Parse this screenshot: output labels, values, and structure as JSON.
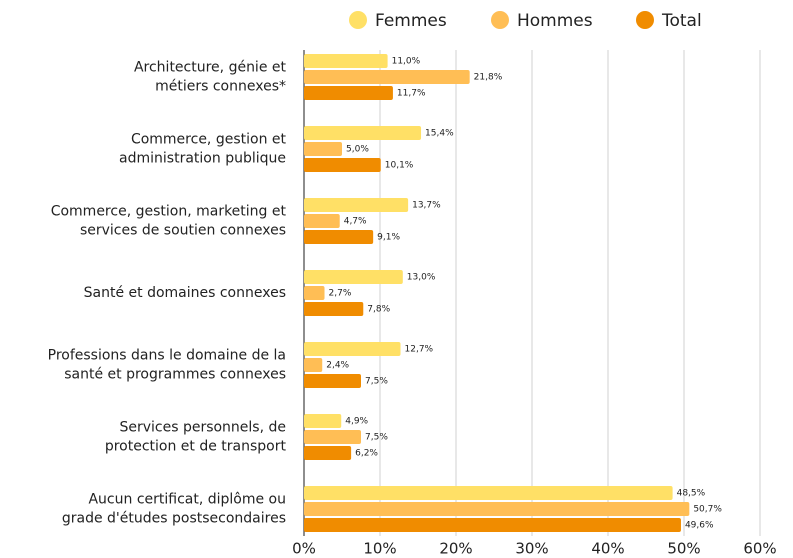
{
  "chart_data": {
    "type": "hbar",
    "categories": [
      [
        "Architecture, génie et",
        "métiers connexes*"
      ],
      [
        "Commerce, gestion et",
        "administration publique"
      ],
      [
        "Commerce, gestion, marketing et",
        "services de soutien connexes"
      ],
      [
        "Santé et domaines connexes"
      ],
      [
        "Professions dans le domaine de la",
        "santé et programmes connexes"
      ],
      [
        "Services personnels, de",
        "protection et de transport"
      ],
      [
        "Aucun certificat, diplôme ou",
        "grade d'études postsecondaires"
      ]
    ],
    "series": [
      {
        "name": "Femmes",
        "color": "#ffe066",
        "values": [
          11.0,
          15.4,
          13.7,
          13.0,
          12.7,
          4.9,
          48.5
        ],
        "value_labels": [
          "11,0%",
          "15,4%",
          "13,7%",
          "13,0%",
          "12,7%",
          "4,9%",
          "48,5%"
        ]
      },
      {
        "name": "Hommes",
        "color": "#ffbe55",
        "values": [
          21.8,
          5.0,
          4.7,
          2.7,
          2.4,
          7.5,
          50.7
        ],
        "value_labels": [
          "21,8%",
          "5,0%",
          "4,7%",
          "2,7%",
          "2,4%",
          "7,5%",
          "50,7%"
        ]
      },
      {
        "name": "Total",
        "color": "#f08c00",
        "values": [
          11.7,
          10.1,
          9.1,
          7.8,
          7.5,
          6.2,
          49.6
        ],
        "value_labels": [
          "11,7%",
          "10,1%",
          "9,1%",
          "7,8%",
          "7,5%",
          "6,2%",
          "49,6%"
        ]
      }
    ],
    "xlim": [
      0,
      60
    ],
    "xticks": [
      {
        "value": 0,
        "label": "0%"
      },
      {
        "value": 10,
        "label": "10%"
      },
      {
        "value": 20,
        "label": "20%"
      },
      {
        "value": 30,
        "label": "30%"
      },
      {
        "value": 40,
        "label": "40%"
      },
      {
        "value": 50,
        "label": "50%"
      },
      {
        "value": 60,
        "label": "60%"
      }
    ],
    "grid": true,
    "legend": "top"
  }
}
